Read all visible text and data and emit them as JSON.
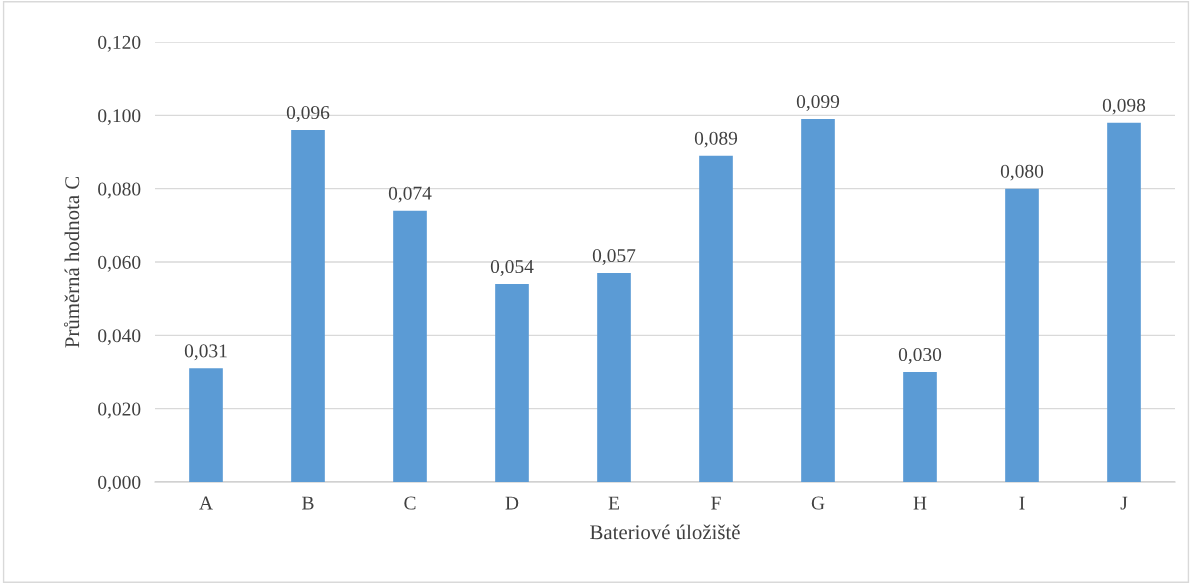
{
  "chart_data": {
    "type": "bar",
    "xlabel": "Bateriové úložiště",
    "ylabel": "Průměrná hodnota C",
    "categories": [
      "A",
      "B",
      "C",
      "D",
      "E",
      "F",
      "G",
      "H",
      "I",
      "J"
    ],
    "values": [
      0.031,
      0.096,
      0.074,
      0.054,
      0.057,
      0.089,
      0.099,
      0.03,
      0.08,
      0.098
    ],
    "value_labels": [
      "0,031",
      "0,096",
      "0,074",
      "0,054",
      "0,057",
      "0,089",
      "0,099",
      "0,030",
      "0,080",
      "0,098"
    ],
    "color": "#5b9bd5",
    "ylim": [
      0,
      0.12
    ],
    "yticks": [
      {
        "value": 0,
        "label": "0,000"
      },
      {
        "value": 0.02,
        "label": "0,020"
      },
      {
        "value": 0.04,
        "label": "0,040"
      },
      {
        "value": 0.06,
        "label": "0,060"
      },
      {
        "value": 0.08,
        "label": "0,080"
      },
      {
        "value": 0.1,
        "label": "0,100"
      },
      {
        "value": 0.12,
        "label": "0,120"
      }
    ],
    "grid": "y",
    "legend": false
  }
}
